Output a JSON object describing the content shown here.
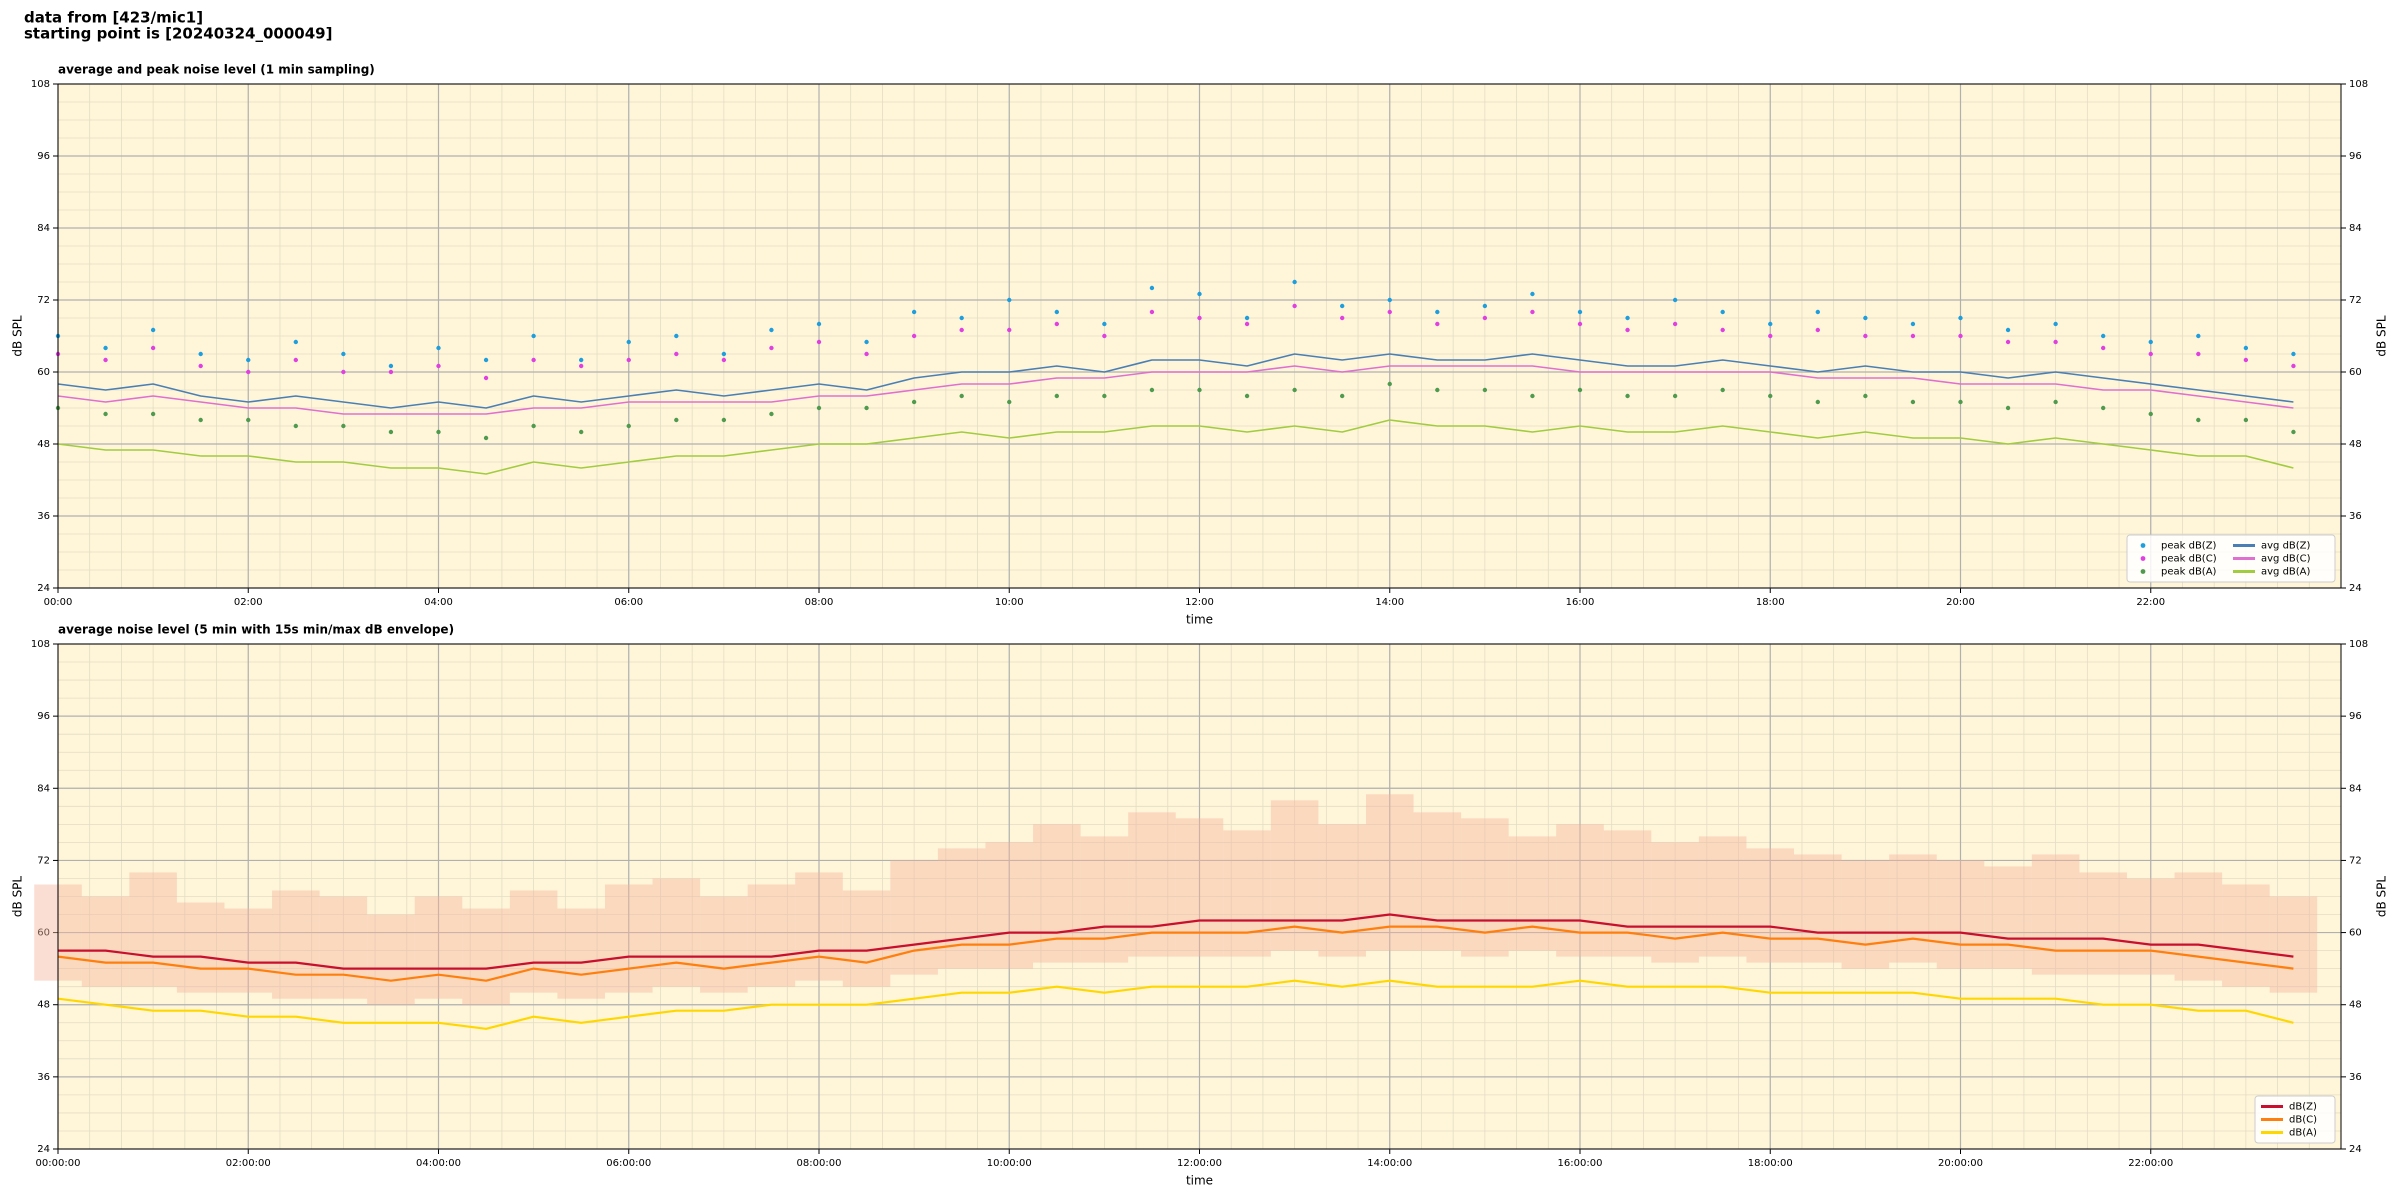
{
  "header": {
    "line1": "data from [423/mic1]",
    "line2": "starting point is [20240324_000049]"
  },
  "chart_data": [
    {
      "type": "line",
      "title": "average and peak noise level (1 min sampling)",
      "xlabel": "time",
      "ylabel": "dB SPL",
      "xlim": [
        0,
        24
      ],
      "ylim": [
        24,
        108
      ],
      "xticks": [
        {
          "value": 0,
          "label": "00:00"
        },
        {
          "value": 2,
          "label": "02:00"
        },
        {
          "value": 4,
          "label": "04:00"
        },
        {
          "value": 6,
          "label": "06:00"
        },
        {
          "value": 8,
          "label": "08:00"
        },
        {
          "value": 10,
          "label": "10:00"
        },
        {
          "value": 12,
          "label": "12:00"
        },
        {
          "value": 14,
          "label": "14:00"
        },
        {
          "value": 16,
          "label": "16:00"
        },
        {
          "value": 18,
          "label": "18:00"
        },
        {
          "value": 20,
          "label": "20:00"
        },
        {
          "value": 22,
          "label": "22:00"
        }
      ],
      "yticks": [
        24,
        36,
        48,
        60,
        72,
        84,
        96,
        108
      ],
      "grid": true,
      "minor_divisions": {
        "x": 6,
        "y": 4
      },
      "background": "#fff6d9",
      "legend": {
        "loc": "lower right",
        "columns": 2
      },
      "x": [
        0,
        0.5,
        1,
        1.5,
        2,
        2.5,
        3,
        3.5,
        4,
        4.5,
        5,
        5.5,
        6,
        6.5,
        7,
        7.5,
        8,
        8.5,
        9,
        9.5,
        10,
        10.5,
        11,
        11.5,
        12,
        12.5,
        13,
        13.5,
        14,
        14.5,
        15,
        15.5,
        16,
        16.5,
        17,
        17.5,
        18,
        18.5,
        19,
        19.5,
        20,
        20.5,
        21,
        21.5,
        22,
        22.5,
        23,
        23.5
      ],
      "series": [
        {
          "name": "peak dB(Z)",
          "color": "#1f9ede",
          "style": "dots",
          "values": [
            66,
            64,
            67,
            63,
            62,
            65,
            63,
            61,
            64,
            62,
            66,
            62,
            65,
            66,
            63,
            67,
            68,
            65,
            70,
            69,
            72,
            70,
            68,
            74,
            73,
            69,
            75,
            71,
            72,
            70,
            71,
            73,
            70,
            69,
            72,
            70,
            68,
            70,
            69,
            68,
            69,
            67,
            68,
            66,
            65,
            66,
            64,
            63
          ]
        },
        {
          "name": "peak dB(C)",
          "color": "#e040e0",
          "style": "dots",
          "values": [
            63,
            62,
            64,
            61,
            60,
            62,
            60,
            60,
            61,
            59,
            62,
            61,
            62,
            63,
            62,
            64,
            65,
            63,
            66,
            67,
            67,
            68,
            66,
            70,
            69,
            68,
            71,
            69,
            70,
            68,
            69,
            70,
            68,
            67,
            68,
            67,
            66,
            67,
            66,
            66,
            66,
            65,
            65,
            64,
            63,
            63,
            62,
            61
          ]
        },
        {
          "name": "peak dB(A)",
          "color": "#4f9a4f",
          "style": "dots",
          "values": [
            54,
            53,
            53,
            52,
            52,
            51,
            51,
            50,
            50,
            49,
            51,
            50,
            51,
            52,
            52,
            53,
            54,
            54,
            55,
            56,
            55,
            56,
            56,
            57,
            57,
            56,
            57,
            56,
            58,
            57,
            57,
            56,
            57,
            56,
            56,
            57,
            56,
            55,
            56,
            55,
            55,
            54,
            55,
            54,
            53,
            52,
            52,
            50
          ]
        },
        {
          "name": "avg dB(Z)",
          "color": "#4a7fb5",
          "style": "line",
          "values": [
            58,
            57,
            58,
            56,
            55,
            56,
            55,
            54,
            55,
            54,
            56,
            55,
            56,
            57,
            56,
            57,
            58,
            57,
            59,
            60,
            60,
            61,
            60,
            62,
            62,
            61,
            63,
            62,
            63,
            62,
            62,
            63,
            62,
            61,
            61,
            62,
            61,
            60,
            61,
            60,
            60,
            59,
            60,
            59,
            58,
            57,
            56,
            55
          ]
        },
        {
          "name": "avg dB(C)",
          "color": "#e070d0",
          "style": "line",
          "values": [
            56,
            55,
            56,
            55,
            54,
            54,
            53,
            53,
            53,
            53,
            54,
            54,
            55,
            55,
            55,
            55,
            56,
            56,
            57,
            58,
            58,
            59,
            59,
            60,
            60,
            60,
            61,
            60,
            61,
            61,
            61,
            61,
            60,
            60,
            60,
            60,
            60,
            59,
            59,
            59,
            58,
            58,
            58,
            57,
            57,
            56,
            55,
            54
          ]
        },
        {
          "name": "avg dB(A)",
          "color": "#a2cc3f",
          "style": "line",
          "values": [
            48,
            47,
            47,
            46,
            46,
            45,
            45,
            44,
            44,
            43,
            45,
            44,
            45,
            46,
            46,
            47,
            48,
            48,
            49,
            50,
            49,
            50,
            50,
            51,
            51,
            50,
            51,
            50,
            52,
            51,
            51,
            50,
            51,
            50,
            50,
            51,
            50,
            49,
            50,
            49,
            49,
            48,
            49,
            48,
            47,
            46,
            46,
            44
          ]
        }
      ]
    },
    {
      "type": "line",
      "title": "average noise level (5 min with 15s min/max dB envelope)",
      "xlabel": "time",
      "ylabel": "dB SPL",
      "xlim": [
        0,
        24
      ],
      "ylim": [
        24,
        108
      ],
      "xticks": [
        {
          "value": 0,
          "label": "00:00:00"
        },
        {
          "value": 2,
          "label": "02:00:00"
        },
        {
          "value": 4,
          "label": "04:00:00"
        },
        {
          "value": 6,
          "label": "06:00:00"
        },
        {
          "value": 8,
          "label": "08:00:00"
        },
        {
          "value": 10,
          "label": "10:00:00"
        },
        {
          "value": 12,
          "label": "12:00:00"
        },
        {
          "value": 14,
          "label": "14:00:00"
        },
        {
          "value": 16,
          "label": "16:00:00"
        },
        {
          "value": 18,
          "label": "18:00:00"
        },
        {
          "value": 20,
          "label": "20:00:00"
        },
        {
          "value": 22,
          "label": "22:00:00"
        }
      ],
      "yticks": [
        24,
        36,
        48,
        60,
        72,
        84,
        96,
        108
      ],
      "grid": true,
      "minor_divisions": {
        "x": 6,
        "y": 4
      },
      "background": "#fff6d9",
      "legend": {
        "loc": "lower right",
        "columns": 1
      },
      "x": [
        0,
        0.5,
        1,
        1.5,
        2,
        2.5,
        3,
        3.5,
        4,
        4.5,
        5,
        5.5,
        6,
        6.5,
        7,
        7.5,
        8,
        8.5,
        9,
        9.5,
        10,
        10.5,
        11,
        11.5,
        12,
        12.5,
        13,
        13.5,
        14,
        14.5,
        15,
        15.5,
        16,
        16.5,
        17,
        17.5,
        18,
        18.5,
        19,
        19.5,
        20,
        20.5,
        21,
        21.5,
        22,
        22.5,
        23,
        23.5
      ],
      "envelope": {
        "color": "#f4b6a0",
        "min": [
          52,
          51,
          51,
          50,
          50,
          49,
          49,
          48,
          49,
          48,
          50,
          49,
          50,
          51,
          50,
          51,
          52,
          51,
          53,
          54,
          54,
          55,
          55,
          56,
          56,
          56,
          57,
          56,
          57,
          57,
          56,
          57,
          56,
          56,
          55,
          56,
          55,
          55,
          54,
          55,
          54,
          54,
          53,
          53,
          53,
          52,
          51,
          50
        ],
        "max": [
          68,
          66,
          70,
          65,
          64,
          67,
          66,
          63,
          66,
          64,
          67,
          64,
          68,
          69,
          66,
          68,
          70,
          67,
          72,
          74,
          75,
          78,
          76,
          80,
          79,
          77,
          82,
          78,
          83,
          80,
          79,
          76,
          78,
          77,
          75,
          76,
          74,
          73,
          72,
          73,
          72,
          71,
          73,
          70,
          69,
          70,
          68,
          66
        ]
      },
      "series": [
        {
          "name": "dB(Z)",
          "color": "#c8102e",
          "style": "line",
          "values": [
            57,
            57,
            56,
            56,
            55,
            55,
            54,
            54,
            54,
            54,
            55,
            55,
            56,
            56,
            56,
            56,
            57,
            57,
            58,
            59,
            60,
            60,
            61,
            61,
            62,
            62,
            62,
            62,
            63,
            62,
            62,
            62,
            62,
            61,
            61,
            61,
            61,
            60,
            60,
            60,
            60,
            59,
            59,
            59,
            58,
            58,
            57,
            56
          ]
        },
        {
          "name": "dB(C)",
          "color": "#ff7f0e",
          "style": "line",
          "values": [
            56,
            55,
            55,
            54,
            54,
            53,
            53,
            52,
            53,
            52,
            54,
            53,
            54,
            55,
            54,
            55,
            56,
            55,
            57,
            58,
            58,
            59,
            59,
            60,
            60,
            60,
            61,
            60,
            61,
            61,
            60,
            61,
            60,
            60,
            59,
            60,
            59,
            59,
            58,
            59,
            58,
            58,
            57,
            57,
            57,
            56,
            55,
            54
          ]
        },
        {
          "name": "dB(A)",
          "color": "#ffd700",
          "style": "line",
          "values": [
            49,
            48,
            47,
            47,
            46,
            46,
            45,
            45,
            45,
            44,
            46,
            45,
            46,
            47,
            47,
            48,
            48,
            48,
            49,
            50,
            50,
            51,
            50,
            51,
            51,
            51,
            52,
            51,
            52,
            51,
            51,
            51,
            52,
            51,
            51,
            51,
            50,
            50,
            50,
            50,
            49,
            49,
            49,
            48,
            48,
            47,
            47,
            45
          ]
        }
      ]
    }
  ]
}
